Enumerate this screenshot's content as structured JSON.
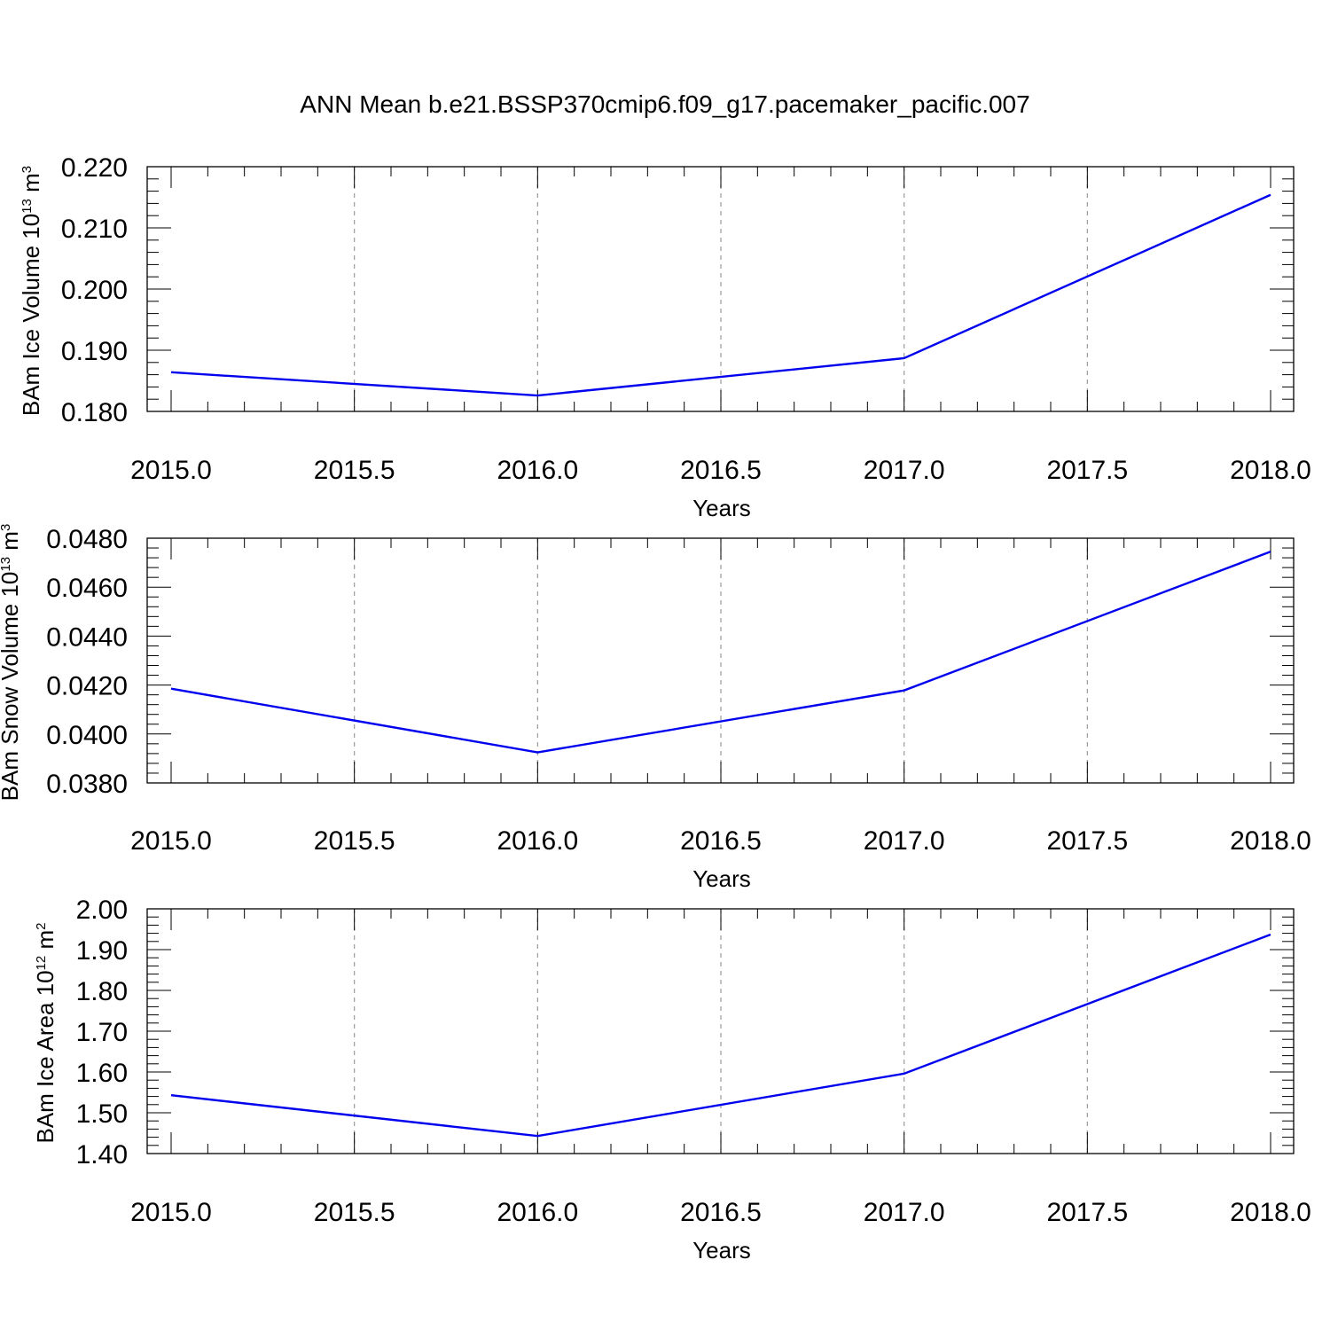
{
  "title": "ANN Mean b.e21.BSSP370cmip6.f09_g17.pacemaker_pacific.007",
  "colors": {
    "line": "#0000ee",
    "axis": "#000000",
    "grid": "#9a9a9a"
  },
  "chart_data": [
    {
      "type": "line",
      "xlabel": "Years",
      "ylabel": {
        "text": "BAm Ice Volume 10",
        "exp": "13",
        "unit": " m",
        "unit_exp": "3"
      },
      "xlim": [
        2015.0,
        2018.0
      ],
      "ylim": [
        0.18,
        0.22
      ],
      "x_ticks": [
        "2015.0",
        "2015.5",
        "2016.0",
        "2016.5",
        "2017.0",
        "2017.5",
        "2018.0"
      ],
      "y_ticks": [
        "0.180",
        "0.190",
        "0.200",
        "0.210",
        "0.220"
      ],
      "x_gridlines": [
        2015.5,
        2016.0,
        2016.5,
        2017.0,
        2017.5
      ],
      "grid": "vertical dashed",
      "x": [
        2015,
        2016,
        2017,
        2018
      ],
      "series": [
        {
          "values": [
            0.1864,
            0.1826,
            0.1887,
            0.2154
          ]
        }
      ]
    },
    {
      "type": "line",
      "xlabel": "Years",
      "ylabel": {
        "text": "BAm Snow Volume 10",
        "exp": "13",
        "unit": " m",
        "unit_exp": "3"
      },
      "xlim": [
        2015.0,
        2018.0
      ],
      "ylim": [
        0.038,
        0.048
      ],
      "x_ticks": [
        "2015.0",
        "2015.5",
        "2016.0",
        "2016.5",
        "2017.0",
        "2017.5",
        "2018.0"
      ],
      "y_ticks": [
        "0.0380",
        "0.0400",
        "0.0420",
        "0.0440",
        "0.0460",
        "0.0480"
      ],
      "x_gridlines": [
        2015.5,
        2016.0,
        2016.5,
        2017.0,
        2017.5
      ],
      "grid": "vertical dashed",
      "x": [
        2015,
        2016,
        2017,
        2018
      ],
      "series": [
        {
          "values": [
            0.04185,
            0.03925,
            0.04178,
            0.04745
          ]
        }
      ]
    },
    {
      "type": "line",
      "xlabel": "Years",
      "ylabel": {
        "text": "BAm Ice Area 10",
        "exp": "12",
        "unit": " m",
        "unit_exp": "2"
      },
      "xlim": [
        2015.0,
        2018.0
      ],
      "ylim": [
        1.4,
        2.0
      ],
      "x_ticks": [
        "2015.0",
        "2015.5",
        "2016.0",
        "2016.5",
        "2017.0",
        "2017.5",
        "2018.0"
      ],
      "y_ticks": [
        "1.40",
        "1.50",
        "1.60",
        "1.70",
        "1.80",
        "1.90",
        "2.00"
      ],
      "x_gridlines": [
        2015.5,
        2016.0,
        2016.5,
        2017.0,
        2017.5
      ],
      "grid": "vertical dashed",
      "x": [
        2015,
        2016,
        2017,
        2018
      ],
      "series": [
        {
          "values": [
            1.543,
            1.443,
            1.596,
            1.937
          ]
        }
      ]
    }
  ]
}
